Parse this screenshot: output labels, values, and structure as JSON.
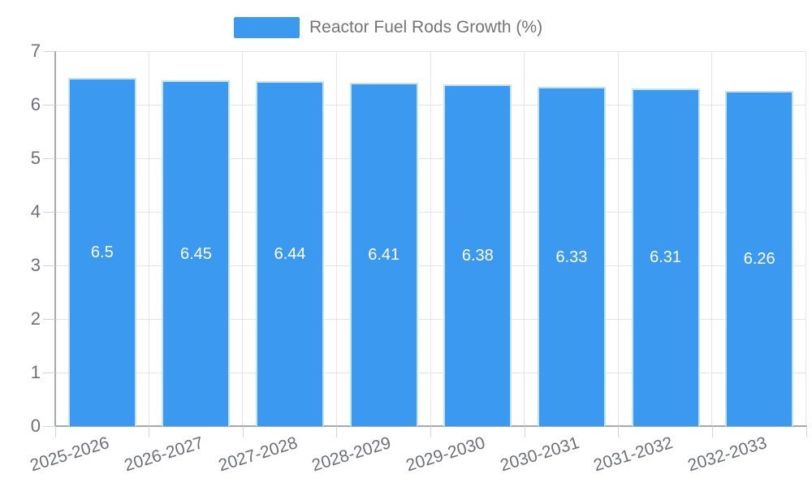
{
  "legend": {
    "label": "Reactor Fuel Rods Growth (%)"
  },
  "chart_data": {
    "type": "bar",
    "title": "Reactor Fuel Rods Growth (%)",
    "categories": [
      "2025-2026",
      "2026-2027",
      "2027-2028",
      "2028-2029",
      "2029-2030",
      "2030-2031",
      "2031-2032",
      "2032-2033"
    ],
    "values": [
      6.5,
      6.45,
      6.44,
      6.41,
      6.38,
      6.33,
      6.31,
      6.26
    ],
    "bar_labels": [
      "6.5",
      "6.45",
      "6.44",
      "6.41",
      "6.38",
      "6.33",
      "6.31",
      "6.26"
    ],
    "xlabel": "",
    "ylabel": "",
    "ylim": [
      0,
      7
    ],
    "ytick_step": 1,
    "yticks": [
      0,
      1,
      2,
      3,
      4,
      5,
      6,
      7
    ],
    "grid": true,
    "legend_position": "top-center",
    "xlabel_rotation_deg": -17,
    "colors": {
      "bar": "#3B9AF0",
      "bar_label": "#FFFFFF",
      "grid": "#E4E4E9",
      "axis": "#A6A9B0",
      "tick": "#D2D4D9",
      "axis_label": "#6E7079",
      "legend_text": "#747474",
      "background": "#FFFFFF"
    }
  }
}
